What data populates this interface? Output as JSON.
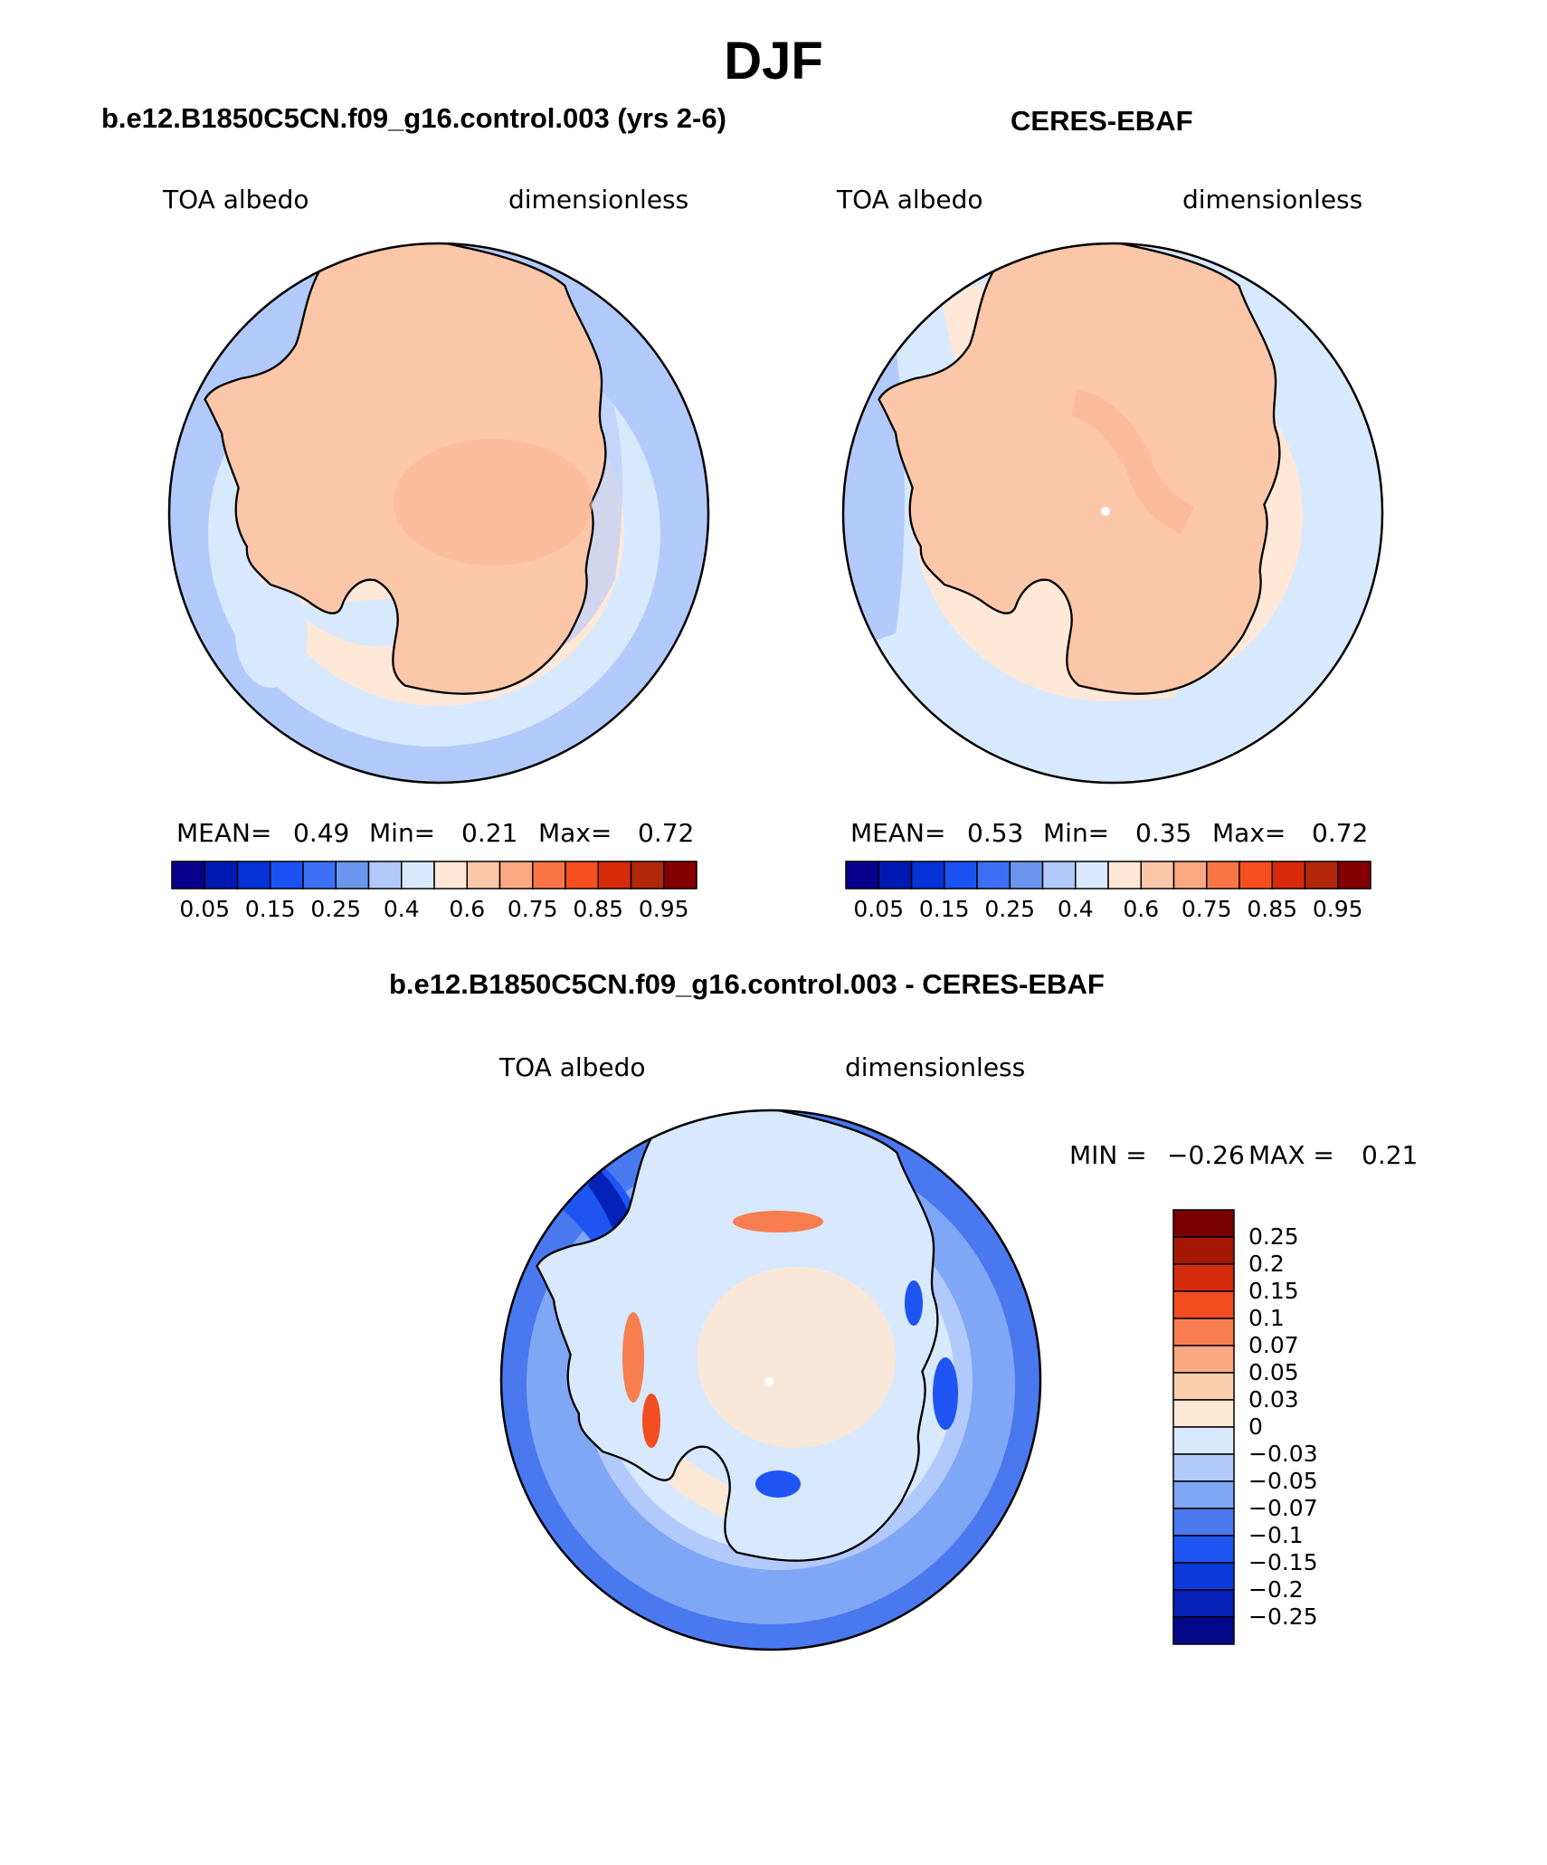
{
  "figure": {
    "season": "DJF",
    "colors": {
      "model_palette": [
        "#08008c",
        "#0019b3",
        "#0532d6",
        "#1b52f4",
        "#3c6ff3",
        "#6b96f0",
        "#b2cafb",
        "#d9e9fd",
        "#ffe8d8",
        "#fcc6a8",
        "#fba883",
        "#fa7546",
        "#f64e1d",
        "#d82a08",
        "#b4280a",
        "#840000"
      ],
      "diff_palette": [
        "#03088b",
        "#0521b8",
        "#0b38da",
        "#1e55f2",
        "#4a78ef",
        "#80a6f6",
        "#b2cafb",
        "#d8e8fd",
        "#fde8d6",
        "#fbcfae",
        "#faa882",
        "#f87d4f",
        "#f24d20",
        "#d32b0c",
        "#a51804",
        "#7a0000"
      ]
    },
    "panels": [
      {
        "id": "model",
        "title": "b.e12.B1850C5CN.f09_g16.control.003 (yrs 2-6)",
        "variable": "TOA albedo",
        "units": "dimensionless",
        "stats": {
          "mean_label": "MEAN=",
          "mean": "0.49",
          "min_label": "Min=",
          "min": "0.21",
          "max_label": "Max=",
          "max": "0.72"
        },
        "colorbar_ticks": [
          "0.05",
          "0.15",
          "0.25",
          "0.4",
          "0.6",
          "0.75",
          "0.85",
          "0.95"
        ]
      },
      {
        "id": "obs",
        "title": "CERES-EBAF",
        "variable": "TOA albedo",
        "units": "dimensionless",
        "stats": {
          "mean_label": "MEAN=",
          "mean": "0.53",
          "min_label": "Min=",
          "min": "0.35",
          "max_label": "Max=",
          "max": "0.72"
        },
        "colorbar_ticks": [
          "0.05",
          "0.15",
          "0.25",
          "0.4",
          "0.6",
          "0.75",
          "0.85",
          "0.95"
        ]
      },
      {
        "id": "diff",
        "title": "b.e12.B1850C5CN.f09_g16.control.003 - CERES-EBAF",
        "variable": "TOA albedo",
        "units": "dimensionless",
        "stats": {
          "min_label": "MIN =",
          "min": "−0.26",
          "max_label": "MAX =",
          "max": "0.21"
        },
        "colorbar_ticks": [
          "0.25",
          "0.2",
          "0.15",
          "0.1",
          "0.07",
          "0.05",
          "0.03",
          "0",
          "−0.03",
          "−0.05",
          "−0.07",
          "−0.1",
          "−0.15",
          "−0.2",
          "−0.25"
        ]
      }
    ]
  }
}
